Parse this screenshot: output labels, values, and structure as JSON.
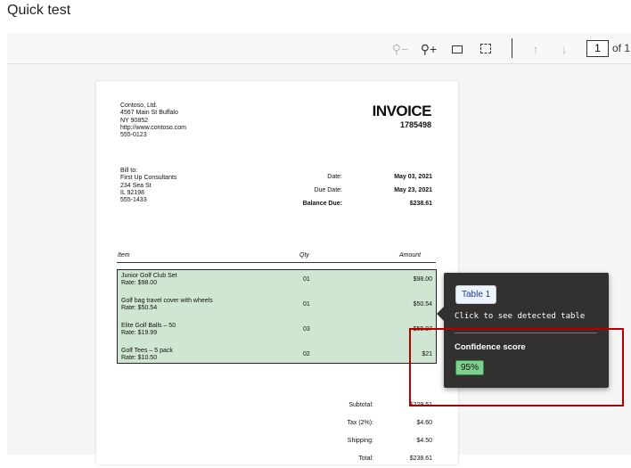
{
  "title": "Quick test",
  "toolbar": {
    "page_current": "1",
    "page_total_label": "of 1",
    "icons": [
      "zoom-out-icon",
      "zoom-in-icon",
      "fit-width-icon",
      "fit-page-icon",
      "arrow-up-icon",
      "arrow-down-icon"
    ]
  },
  "invoice": {
    "from": [
      "Contoso, Ltd.",
      "4567 Main St Buffalo",
      "NY 90852",
      "http://www.contoso.com",
      "555-0123"
    ],
    "heading": "INVOICE",
    "number": "1785498",
    "bill_to": [
      "Bill to:",
      "First Up Consultants",
      "234 Sea St",
      "IL 92198",
      "555-1433"
    ],
    "meta": [
      {
        "label": "Date:",
        "value": "May 03, 2021"
      },
      {
        "label": "Due Date:",
        "value": "May 23, 2021"
      },
      {
        "label": "Balance Due:",
        "value": "$238.61"
      }
    ],
    "columns": {
      "item": "Item",
      "qty": "Qty",
      "amount": "Amount"
    },
    "rows": [
      {
        "name": "Junior Golf Club Set",
        "rate": "Rate: $98.00",
        "qty": "01",
        "amount": "$98.00"
      },
      {
        "name": "Golf bag travel cover with wheels",
        "rate": "Rate: $50.54",
        "qty": "01",
        "amount": "$50.54"
      },
      {
        "name": "Elite Golf Balls – 50",
        "rate": "Rate: $19.99",
        "qty": "03",
        "amount": "$59.97"
      },
      {
        "name": "Golf Tees – 5 pack",
        "rate": "Rate: $10.50",
        "qty": "02",
        "amount": "$21"
      }
    ],
    "totals": [
      {
        "label": "Subtotal:",
        "value": "$229.51"
      },
      {
        "label": "Tax (2%):",
        "value": "$4.60"
      },
      {
        "label": "Shipping:",
        "value": "$4.50"
      },
      {
        "label": "Total:",
        "value": "$238.61"
      }
    ]
  },
  "tooltip": {
    "chip": "Table 1",
    "hint": "Click to see detected table",
    "confidence_label": "Confidence score",
    "confidence": "95%"
  },
  "colors": {
    "table_highlight": "#cfe6d2",
    "tooltip_bg": "#323130",
    "confidence_badge": "#7dd08e",
    "highlight_box": "#b00000"
  }
}
